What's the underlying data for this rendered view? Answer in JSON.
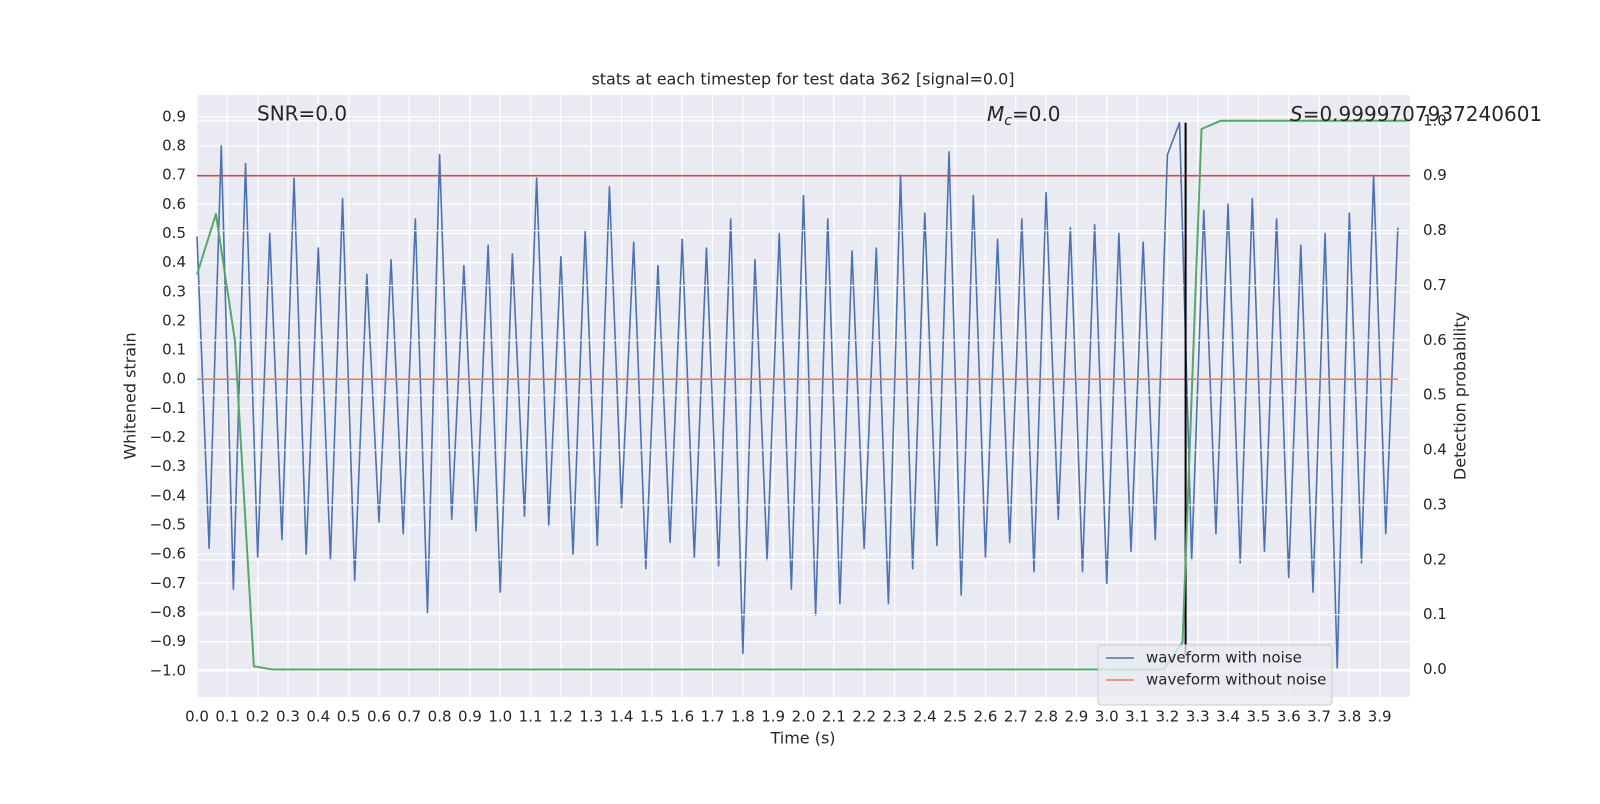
{
  "chart_data": {
    "type": "line",
    "title": "stats at each timestep for test data 362 [signal=0.0]",
    "xlabel": "Time (s)",
    "ylabel": "Whitened strain",
    "y2label": "Detection probability",
    "annotations": {
      "snr": "SNR=0.0",
      "mc": {
        "base": "M",
        "sub": "c",
        "rest": "=0.0"
      },
      "s": {
        "base": "S",
        "rest": "=0.9999707937240601"
      }
    },
    "xlim": [
      0,
      4.0
    ],
    "ylim": [
      -1.09,
      0.975
    ],
    "y2lim": [
      -0.05,
      1.047
    ],
    "grid": true,
    "legend": "lower right",
    "xticks": [
      {
        "value": 0,
        "label": "0.0"
      },
      0.1,
      0.2,
      0.3,
      0.4,
      0.5,
      0.6,
      0.7,
      0.8,
      0.9,
      {
        "value": 1,
        "label": "1.0"
      },
      1.1,
      1.2,
      1.3,
      1.4,
      1.5,
      1.6,
      1.7,
      1.8,
      1.9,
      {
        "value": 2,
        "label": "2.0"
      },
      2.1,
      2.2,
      2.3,
      2.4,
      2.5,
      2.6,
      2.7,
      2.8,
      2.9,
      {
        "value": 3,
        "label": "3.0"
      },
      3.1,
      3.2,
      3.3,
      3.4,
      3.5,
      3.6,
      3.7,
      3.8,
      3.9
    ],
    "yticks": [
      {
        "value": -1,
        "label": "−1.0"
      },
      {
        "value": -0.9,
        "label": "−0.9"
      },
      {
        "value": -0.8,
        "label": "−0.8"
      },
      {
        "value": -0.7,
        "label": "−0.7"
      },
      {
        "value": -0.6,
        "label": "−0.6"
      },
      {
        "value": -0.5,
        "label": "−0.5"
      },
      {
        "value": -0.4,
        "label": "−0.4"
      },
      {
        "value": -0.3,
        "label": "−0.3"
      },
      {
        "value": -0.2,
        "label": "−0.2"
      },
      {
        "value": -0.1,
        "label": "−0.1"
      },
      {
        "value": 0,
        "label": "0.0"
      },
      0.1,
      0.2,
      0.3,
      0.4,
      0.5,
      0.6,
      0.7,
      0.8,
      0.9
    ],
    "y2ticks": [
      {
        "value": 0,
        "label": "0.0"
      },
      0.1,
      0.2,
      0.3,
      0.4,
      0.5,
      0.6,
      0.7,
      0.8,
      0.9,
      {
        "value": 1,
        "label": "1.0"
      }
    ],
    "x": [
      0,
      0.04,
      0.08,
      0.12,
      0.16,
      0.2,
      0.24,
      0.28,
      0.32,
      0.36,
      0.4,
      0.44,
      0.48,
      0.52,
      0.56,
      0.6,
      0.64,
      0.68,
      0.72,
      0.76,
      0.8,
      0.84,
      0.88,
      0.92,
      0.96,
      1,
      1.04,
      1.08,
      1.12,
      1.16,
      1.2,
      1.24,
      1.28,
      1.32,
      1.36,
      1.4,
      1.44,
      1.48,
      1.52,
      1.56,
      1.6,
      1.64,
      1.68,
      1.72,
      1.76,
      1.8,
      1.84,
      1.88,
      1.92,
      1.96,
      2,
      2.04,
      2.08,
      2.12,
      2.16,
      2.2,
      2.24,
      2.28,
      2.32,
      2.36,
      2.4,
      2.44,
      2.48,
      2.52,
      2.56,
      2.6,
      2.64,
      2.68,
      2.72,
      2.76,
      2.8,
      2.84,
      2.88,
      2.92,
      2.96,
      3,
      3.04,
      3.08,
      3.12,
      3.16,
      3.2,
      3.24,
      3.28,
      3.32,
      3.36,
      3.4,
      3.44,
      3.48,
      3.52,
      3.56,
      3.6,
      3.64,
      3.68,
      3.72,
      3.76,
      3.8,
      3.84,
      3.88,
      3.92,
      3.96
    ],
    "series": [
      {
        "name": "waveform with noise",
        "color": "#4c72b0",
        "values": [
          0.49,
          -0.58,
          0.8,
          -0.72,
          0.74,
          -0.61,
          0.5,
          -0.55,
          0.69,
          -0.6,
          0.45,
          -0.62,
          0.62,
          -0.69,
          0.36,
          -0.49,
          0.41,
          -0.53,
          0.55,
          -0.8,
          0.77,
          -0.48,
          0.39,
          -0.52,
          0.46,
          -0.73,
          0.43,
          -0.47,
          0.69,
          -0.5,
          0.42,
          -0.6,
          0.51,
          -0.57,
          0.66,
          -0.44,
          0.47,
          -0.65,
          0.39,
          -0.56,
          0.48,
          -0.61,
          0.45,
          -0.64,
          0.55,
          -0.94,
          0.41,
          -0.62,
          0.5,
          -0.72,
          0.63,
          -0.81,
          0.55,
          -0.77,
          0.44,
          -0.58,
          0.45,
          -0.77,
          0.7,
          -0.65,
          0.57,
          -0.57,
          0.78,
          -0.74,
          0.63,
          -0.61,
          0.48,
          -0.56,
          0.55,
          -0.66,
          0.64,
          -0.48,
          0.52,
          -0.66,
          0.53,
          -0.7,
          0.5,
          -0.59,
          0.47,
          -0.55,
          0.77,
          0.88,
          -0.62,
          0.58,
          -0.53,
          0.6,
          -0.63,
          0.62,
          -0.59,
          0.55,
          -0.68,
          0.46,
          -0.73,
          0.5,
          -0.99,
          0.57,
          -0.63,
          0.7,
          -0.53,
          0.52
        ]
      },
      {
        "name": "waveform without noise",
        "color": "#dd8452",
        "values": [
          0,
          0,
          0,
          0,
          0,
          0,
          0,
          0,
          0,
          0,
          0,
          0,
          0,
          0,
          0,
          0,
          0,
          0,
          0,
          0,
          0,
          0,
          0,
          0,
          0,
          0,
          0,
          0,
          0,
          0,
          0,
          0,
          0,
          0,
          0,
          0,
          0,
          0,
          0,
          0,
          0,
          0,
          0,
          0,
          0,
          0,
          0,
          0,
          0,
          0,
          0,
          0,
          0,
          0,
          0,
          0,
          0,
          0,
          0,
          0,
          0,
          0,
          0,
          0,
          0,
          0,
          0,
          0,
          0,
          0,
          0,
          0,
          0,
          0,
          0,
          0,
          0,
          0,
          0,
          0,
          0,
          0,
          0,
          0,
          0,
          0,
          0,
          0,
          0,
          0,
          0,
          0,
          0,
          0,
          0,
          0,
          0,
          0,
          0,
          0
        ]
      }
    ],
    "probability": {
      "color": "#55a868",
      "axis": "y2",
      "x": [
        0,
        0.0625,
        0.125,
        0.1875,
        0.25,
        3.1875,
        3.25,
        3.3125,
        3.375,
        3.99
      ],
      "values": [
        0.72,
        0.83,
        0.6,
        0.006,
        0,
        0,
        0.05,
        0.985,
        1,
        1
      ]
    },
    "threshold": {
      "color": "#c44e52",
      "axis": "y2",
      "value": 0.9
    },
    "vline": {
      "color": "#000000",
      "x": 3.26,
      "range": [
        -0.95,
        0.88
      ]
    }
  }
}
